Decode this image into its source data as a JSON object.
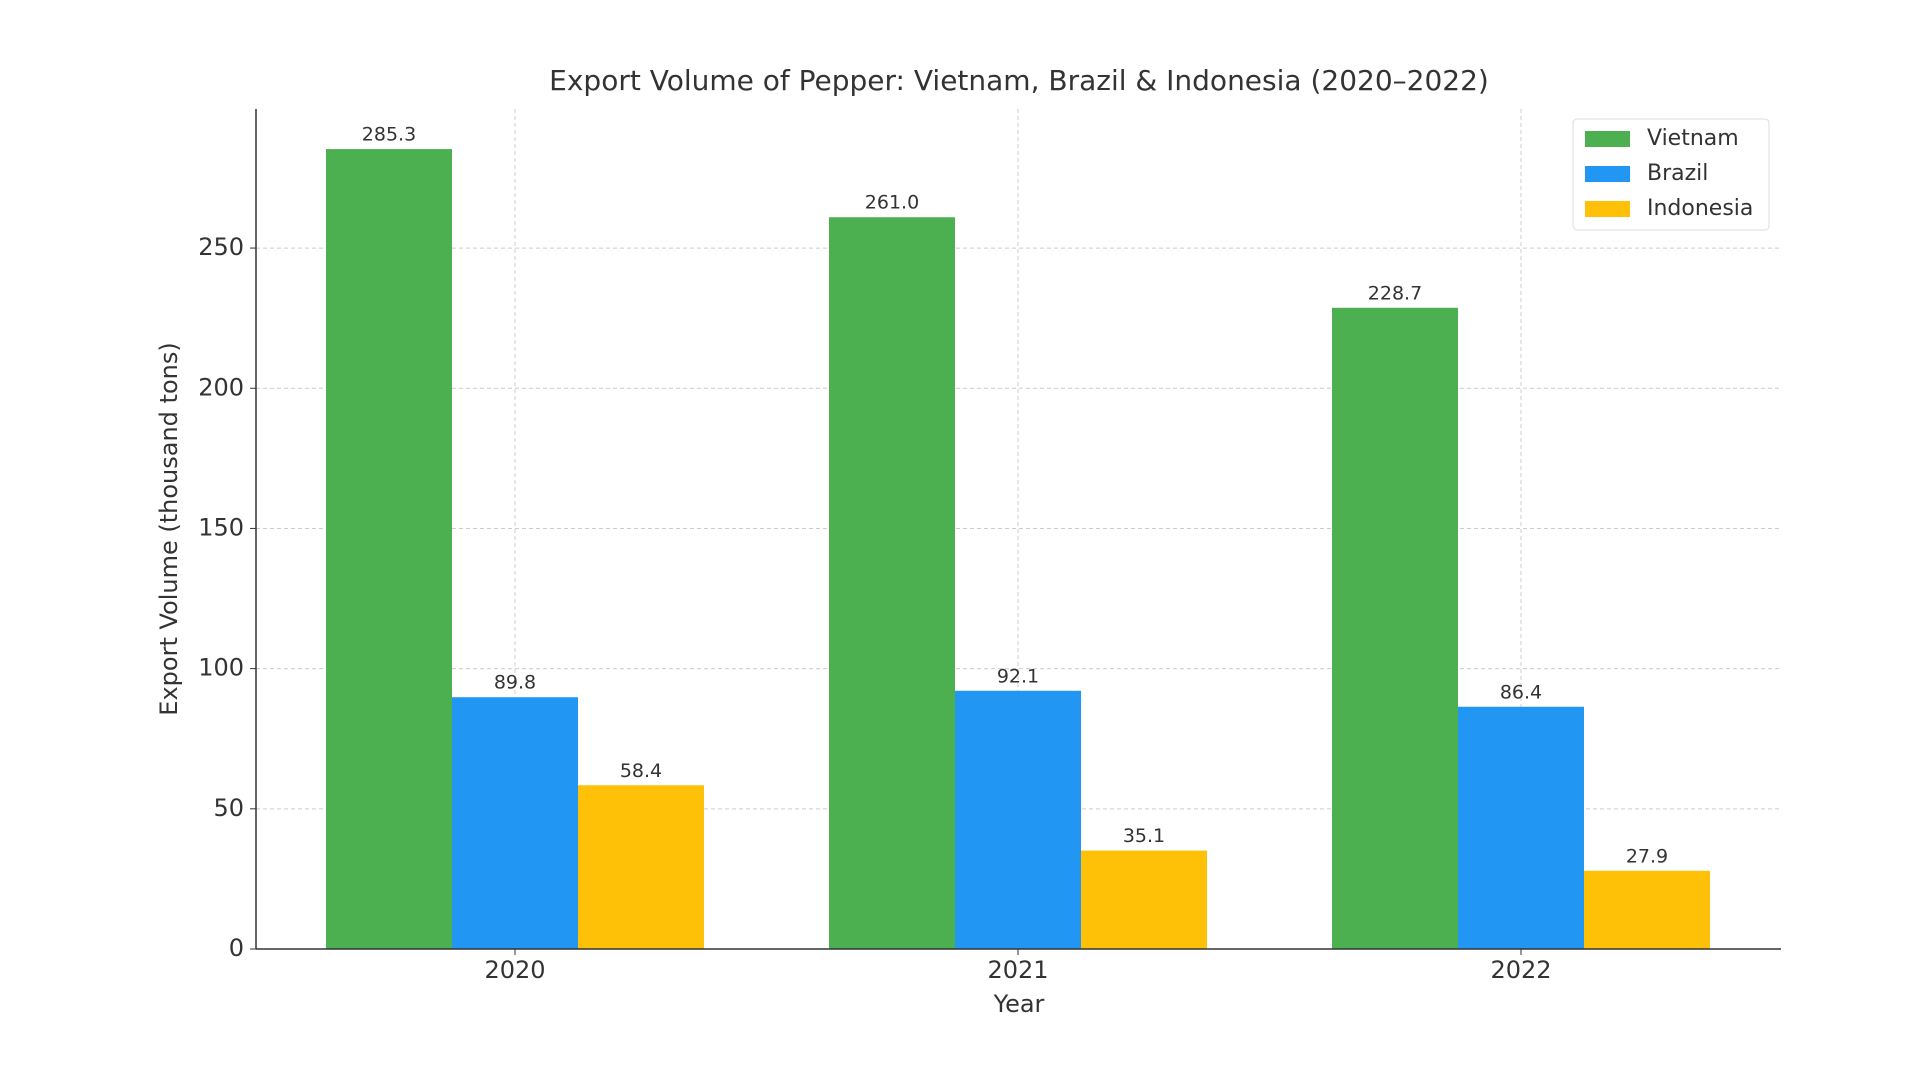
{
  "chart_data": {
    "type": "bar",
    "title": "Export Volume of Pepper: Vietnam, Brazil & Indonesia (2020–2022)",
    "x_label": "Year",
    "y_label": "Export Volume (thousand tons)",
    "categories": [
      "2020",
      "2021",
      "2022"
    ],
    "series": [
      {
        "name": "Vietnam",
        "color": "#4caf50",
        "values": [
          285.3,
          261.0,
          228.7
        ],
        "value_labels": [
          "285.3",
          "261.0",
          "228.7"
        ]
      },
      {
        "name": "Brazil",
        "color": "#2196f3",
        "values": [
          89.8,
          92.1,
          86.4
        ],
        "value_labels": [
          "89.8",
          "92.1",
          "86.4"
        ]
      },
      {
        "name": "Indonesia",
        "color": "#ffc107",
        "values": [
          58.4,
          35.1,
          27.9
        ],
        "value_labels": [
          "58.4",
          "35.1",
          "27.9"
        ]
      }
    ],
    "ylim": [
      0,
      299.6
    ],
    "yticks": [
      0,
      50,
      100,
      150,
      200,
      250
    ],
    "grid": true,
    "legend": "upper right"
  }
}
